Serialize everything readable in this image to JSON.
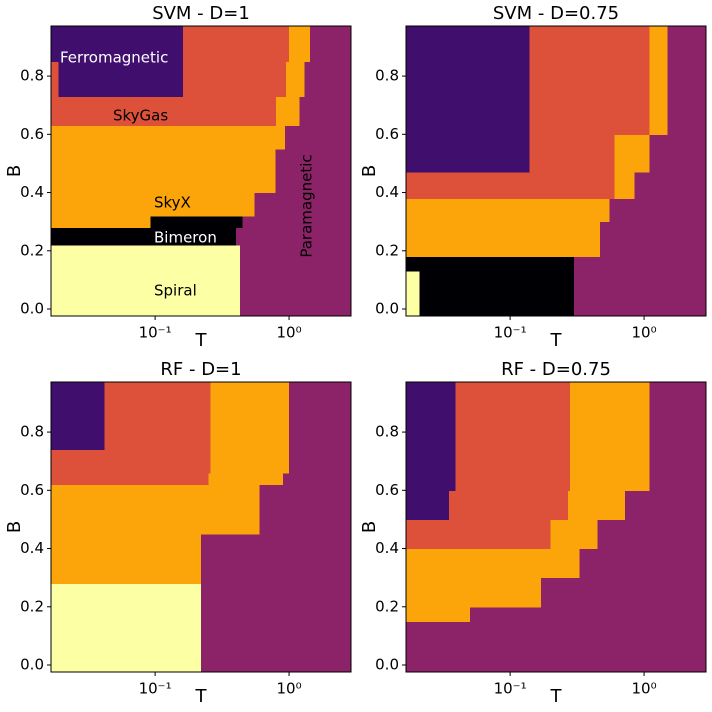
{
  "chart_data": [
    {
      "type": "phase-map",
      "title": "SVM - D=1",
      "xlabel": "T",
      "ylabel": "B",
      "xscale": "log",
      "xlim": [
        0.0167,
        2.9
      ],
      "ylim": [
        -0.024,
        0.972
      ],
      "xticks": [
        {
          "value": 0.1,
          "label": "10⁻¹"
        },
        {
          "value": 1,
          "label": "10⁰"
        }
      ],
      "yticks": [
        {
          "value": 0,
          "label": "0.0"
        },
        0.2,
        0.4,
        0.6,
        0.8
      ],
      "colors": [
        "#400f6e",
        "#dd513a",
        "#fca50a",
        "#000004",
        "#fcffa4",
        "#8c2369"
      ],
      "annotations": [
        "Ferromagnetic",
        "SkyGas",
        "SkyX",
        "Bimeron",
        "Spiral",
        "Paramagnetic"
      ],
      "bands": [
        {
          "b": [
            -0.024,
            0.22
          ],
          "cuts": [
            0.43
          ],
          "cells": [
            4,
            5
          ]
        },
        {
          "b": [
            0.22,
            0.28
          ],
          "cuts": [
            0.4
          ],
          "cells": [
            3,
            5
          ]
        },
        {
          "b": [
            0.28,
            0.32
          ],
          "cuts": [
            0.092,
            0.45
          ],
          "cells": [
            2,
            3,
            5
          ]
        },
        {
          "b": [
            0.32,
            0.4
          ],
          "cuts": [
            0.55
          ],
          "cells": [
            2,
            5
          ]
        },
        {
          "b": [
            0.4,
            0.55
          ],
          "cuts": [
            0.79
          ],
          "cells": [
            2,
            5
          ]
        },
        {
          "b": [
            0.55,
            0.63
          ],
          "cuts": [
            0.93
          ],
          "cells": [
            2,
            5
          ]
        },
        {
          "b": [
            0.63,
            0.73
          ],
          "cuts": [
            0.8,
            1.2
          ],
          "cells": [
            1,
            2,
            5
          ]
        },
        {
          "b": [
            0.73,
            0.85
          ],
          "cuts": [
            0.019,
            0.162,
            0.95,
            1.3
          ],
          "cells": [
            1,
            0,
            1,
            2,
            5
          ]
        },
        {
          "b": [
            0.85,
            0.972
          ],
          "cuts": [
            0.162,
            1.0,
            1.43
          ],
          "cells": [
            0,
            1,
            2,
            5
          ]
        }
      ]
    },
    {
      "type": "phase-map",
      "title": "SVM - D=0.75",
      "xlabel": "T",
      "ylabel": "B",
      "xscale": "log",
      "xlim": [
        0.0167,
        2.9
      ],
      "ylim": [
        -0.024,
        0.972
      ],
      "xticks": [
        {
          "value": 0.1,
          "label": "10⁻¹"
        },
        {
          "value": 1,
          "label": "10⁰"
        }
      ],
      "yticks": [
        {
          "value": 0,
          "label": "0.0"
        },
        0.2,
        0.4,
        0.6,
        0.8
      ],
      "colors": [
        "#400f6e",
        "#dd513a",
        "#fca50a",
        "#000004",
        "#fcffa4",
        "#8c2369"
      ],
      "bands": [
        {
          "b": [
            -0.024,
            0.13
          ],
          "cuts": [
            0.021,
            0.3
          ],
          "cells": [
            4,
            3,
            5
          ]
        },
        {
          "b": [
            0.13,
            0.18
          ],
          "cuts": [
            0.3
          ],
          "cells": [
            3,
            5
          ]
        },
        {
          "b": [
            0.18,
            0.3
          ],
          "cuts": [
            0.47
          ],
          "cells": [
            2,
            5
          ]
        },
        {
          "b": [
            0.3,
            0.38
          ],
          "cuts": [
            0.55
          ],
          "cells": [
            2,
            5
          ]
        },
        {
          "b": [
            0.38,
            0.47
          ],
          "cuts": [
            0.6,
            0.85
          ],
          "cells": [
            1,
            2,
            5
          ]
        },
        {
          "b": [
            0.47,
            0.6
          ],
          "cuts": [
            0.14,
            0.6,
            1.1
          ],
          "cells": [
            0,
            1,
            2,
            5
          ]
        },
        {
          "b": [
            0.6,
            0.972
          ],
          "cuts": [
            0.14,
            1.1,
            1.5
          ],
          "cells": [
            0,
            1,
            2,
            5
          ]
        }
      ]
    },
    {
      "type": "phase-map",
      "title": "RF - D=1",
      "xlabel": "T",
      "ylabel": "B",
      "xscale": "log",
      "xlim": [
        0.0167,
        2.9
      ],
      "ylim": [
        -0.024,
        0.972
      ],
      "xticks": [
        {
          "value": 0.1,
          "label": "10⁻¹"
        },
        {
          "value": 1,
          "label": "10⁰"
        }
      ],
      "yticks": [
        {
          "value": 0,
          "label": "0.0"
        },
        0.2,
        0.4,
        0.6,
        0.8
      ],
      "colors": [
        "#400f6e",
        "#dd513a",
        "#fca50a",
        "#000004",
        "#fcffa4",
        "#8c2369"
      ],
      "bands": [
        {
          "b": [
            -0.024,
            0.28
          ],
          "cuts": [
            0.22
          ],
          "cells": [
            4,
            5
          ]
        },
        {
          "b": [
            0.28,
            0.45
          ],
          "cuts": [
            0.22
          ],
          "cells": [
            2,
            5
          ]
        },
        {
          "b": [
            0.45,
            0.62
          ],
          "cuts": [
            0.6
          ],
          "cells": [
            2,
            5
          ]
        },
        {
          "b": [
            0.62,
            0.66
          ],
          "cuts": [
            0.25,
            0.9
          ],
          "cells": [
            1,
            2,
            5
          ]
        },
        {
          "b": [
            0.66,
            0.74
          ],
          "cuts": [
            0.26,
            1.0
          ],
          "cells": [
            1,
            2,
            5
          ]
        },
        {
          "b": [
            0.74,
            0.972
          ],
          "cuts": [
            0.042,
            0.26,
            1.0
          ],
          "cells": [
            0,
            1,
            2,
            5
          ]
        }
      ]
    },
    {
      "type": "phase-map",
      "title": "RF - D=0.75",
      "xlabel": "T",
      "ylabel": "B",
      "xscale": "log",
      "xlim": [
        0.0167,
        2.9
      ],
      "ylim": [
        -0.024,
        0.972
      ],
      "xticks": [
        {
          "value": 0.1,
          "label": "10⁻¹"
        },
        {
          "value": 1,
          "label": "10⁰"
        }
      ],
      "yticks": [
        {
          "value": 0,
          "label": "0.0"
        },
        0.2,
        0.4,
        0.6,
        0.8
      ],
      "colors": [
        "#400f6e",
        "#dd513a",
        "#fca50a",
        "#000004",
        "#fcffa4",
        "#8c2369"
      ],
      "bands": [
        {
          "b": [
            -0.024,
            0.15
          ],
          "cuts": [],
          "cells": [
            5
          ]
        },
        {
          "b": [
            0.15,
            0.2
          ],
          "cuts": [
            0.05
          ],
          "cells": [
            2,
            5
          ]
        },
        {
          "b": [
            0.2,
            0.3
          ],
          "cuts": [
            0.17
          ],
          "cells": [
            2,
            5
          ]
        },
        {
          "b": [
            0.3,
            0.4
          ],
          "cuts": [
            0.33
          ],
          "cells": [
            2,
            5
          ]
        },
        {
          "b": [
            0.4,
            0.5
          ],
          "cuts": [
            0.2,
            0.45
          ],
          "cells": [
            1,
            2,
            5
          ]
        },
        {
          "b": [
            0.5,
            0.6
          ],
          "cuts": [
            0.035,
            0.27,
            0.72
          ],
          "cells": [
            0,
            1,
            2,
            5
          ]
        },
        {
          "b": [
            0.6,
            0.972
          ],
          "cuts": [
            0.039,
            0.28,
            1.1
          ],
          "cells": [
            0,
            1,
            2,
            5
          ]
        }
      ]
    }
  ]
}
